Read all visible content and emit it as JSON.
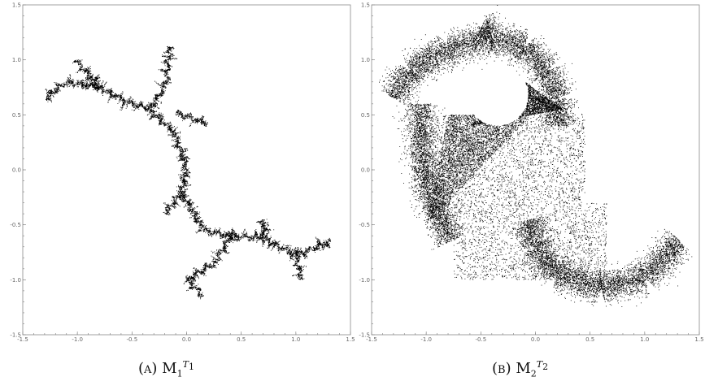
{
  "chart_data": [
    {
      "type": "scatter",
      "title": "",
      "xlabel": "",
      "ylabel": "",
      "xlim": [
        -1.5,
        1.5
      ],
      "ylim": [
        -1.5,
        1.5
      ],
      "xticks": [
        "-1.5",
        "-1.0",
        "-0.5",
        "0.0",
        "0.5",
        "1.0",
        "1.5"
      ],
      "yticks": [
        "-1.5",
        "-1.0",
        "-0.5",
        "0.0",
        "0.5",
        "1.0",
        "1.5"
      ],
      "grid": false,
      "marker_color": "#000000",
      "caption": {
        "tag": "(a)",
        "symbol": "M",
        "sub": "1",
        "sup_base": "T",
        "sup_sub": "1"
      },
      "shape": "dendrite",
      "branches": [
        [
          [
            0.0,
            0.0
          ],
          [
            -0.12,
            0.35
          ],
          [
            -0.35,
            0.55
          ]
        ],
        [
          [
            -0.35,
            0.55
          ],
          [
            -0.55,
            0.62
          ],
          [
            -0.8,
            0.75
          ],
          [
            -1.1,
            0.8
          ],
          [
            -1.3,
            0.65
          ]
        ],
        [
          [
            -0.35,
            0.55
          ],
          [
            -0.2,
            0.75
          ],
          [
            -0.15,
            1.12
          ]
        ],
        [
          [
            -0.8,
            0.75
          ],
          [
            -1.02,
            1.0
          ]
        ],
        [
          [
            -0.1,
            0.52
          ],
          [
            0.18,
            0.42
          ]
        ],
        [
          [
            0.0,
            0.0
          ],
          [
            -0.05,
            -0.2
          ],
          [
            -0.2,
            -0.4
          ]
        ],
        [
          [
            -0.05,
            -0.2
          ],
          [
            0.15,
            -0.55
          ],
          [
            0.4,
            -0.6
          ],
          [
            0.7,
            -0.62
          ],
          [
            1.0,
            -0.78
          ],
          [
            1.32,
            -0.65
          ]
        ],
        [
          [
            0.7,
            -0.62
          ],
          [
            0.7,
            -0.45
          ]
        ],
        [
          [
            1.0,
            -0.78
          ],
          [
            1.05,
            -1.0
          ]
        ],
        [
          [
            0.4,
            -0.6
          ],
          [
            0.25,
            -0.85
          ],
          [
            0.0,
            -1.0
          ],
          [
            0.15,
            -1.15
          ]
        ]
      ]
    },
    {
      "type": "scatter",
      "title": "",
      "xlabel": "",
      "ylabel": "",
      "xlim": [
        -1.5,
        1.5
      ],
      "ylim": [
        -1.5,
        1.5
      ],
      "xticks": [
        "-1.5",
        "-1.0",
        "-0.5",
        "0.0",
        "0.5",
        "1.0",
        "1.5"
      ],
      "yticks": [
        "-1.5",
        "-1.0",
        "-0.5",
        "0.0",
        "0.5",
        "1.0",
        "1.5"
      ],
      "grid": false,
      "marker_color": "#000000",
      "caption": {
        "tag": "(b)",
        "symbol": "M",
        "sub": "2",
        "sup_base": "T",
        "sup_sub": "2"
      },
      "shape": "spiral-cloud",
      "bands": [
        [
          [
            -1.3,
            0.65
          ],
          [
            -1.15,
            0.9
          ],
          [
            -0.8,
            1.1
          ],
          [
            -0.4,
            1.2
          ],
          [
            -0.1,
            1.12
          ],
          [
            0.1,
            0.9
          ],
          [
            0.2,
            0.65
          ],
          [
            0.2,
            0.4
          ]
        ],
        [
          [
            -0.4,
            1.25
          ],
          [
            -0.5,
            1.3
          ]
        ],
        [
          [
            -1.05,
            0.6
          ],
          [
            -1.05,
            0.25
          ],
          [
            -1.0,
            -0.1
          ],
          [
            -0.9,
            -0.4
          ],
          [
            -0.78,
            -0.65
          ]
        ],
        [
          [
            -0.05,
            -0.45
          ],
          [
            0.0,
            -0.7
          ],
          [
            0.2,
            -0.95
          ],
          [
            0.6,
            -1.08
          ],
          [
            1.0,
            -0.98
          ],
          [
            1.32,
            -0.65
          ]
        ]
      ],
      "fills": [
        [
          [
            -1.0,
            -0.5
          ],
          [
            -0.05,
            0.5
          ],
          [
            -0.8,
            0.5
          ]
        ],
        [
          [
            -0.1,
            0.8
          ],
          [
            -0.6,
            0.4
          ],
          [
            0.25,
            0.55
          ]
        ]
      ],
      "hole": {
        "center": [
          -0.35,
          0.68
        ],
        "radius": 0.28
      }
    }
  ]
}
